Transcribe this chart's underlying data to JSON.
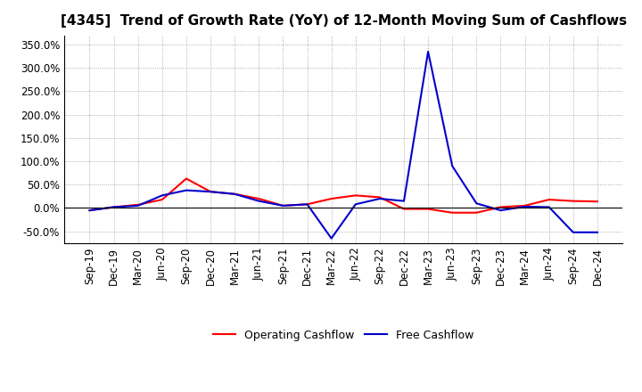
{
  "title": "[4345]  Trend of Growth Rate (YoY) of 12-Month Moving Sum of Cashflows",
  "x_labels": [
    "Sep-19",
    "Dec-19",
    "Mar-20",
    "Jun-20",
    "Sep-20",
    "Dec-20",
    "Mar-21",
    "Jun-21",
    "Sep-21",
    "Dec-21",
    "Mar-22",
    "Jun-22",
    "Sep-22",
    "Dec-22",
    "Mar-23",
    "Jun-23",
    "Sep-23",
    "Dec-23",
    "Mar-24",
    "Jun-24",
    "Sep-24",
    "Dec-24"
  ],
  "operating_cashflow": [
    -5,
    2,
    7,
    18,
    63,
    35,
    30,
    20,
    5,
    8,
    20,
    27,
    23,
    -2,
    -2,
    -10,
    -10,
    2,
    5,
    18,
    15,
    14
  ],
  "free_cashflow": [
    -5,
    2,
    5,
    27,
    38,
    35,
    30,
    15,
    5,
    8,
    -65,
    8,
    20,
    15,
    335,
    90,
    10,
    -5,
    3,
    2,
    -52,
    -52
  ],
  "ylim": [
    -75,
    370
  ],
  "yticks": [
    -50,
    0,
    50,
    100,
    150,
    200,
    250,
    300,
    350
  ],
  "operating_color": "#ff0000",
  "free_color": "#0000cc",
  "background_color": "#ffffff",
  "grid_color": "#999999",
  "legend_labels": [
    "Operating Cashflow",
    "Free Cashflow"
  ],
  "title_fontsize": 11,
  "tick_fontsize": 8.5,
  "legend_fontsize": 9
}
